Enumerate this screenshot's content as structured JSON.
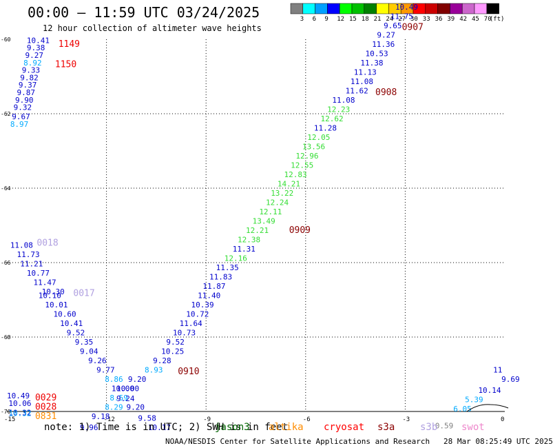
{
  "title": "00:00 – 11:59 UTC 03/24/2025",
  "subtitle": "12 hour collection of altimeter wave heights",
  "footer_note": "note: 1) Time is in UTC; 2) SWH is in feet",
  "footer_credit": "NOAA/NESDIS Center for Satellite Applications and Research   28 Mar 08:25:49 UTC 2025",
  "satellites": [
    {
      "name": "jason3",
      "color": "#006400"
    },
    {
      "name": "altika",
      "color": "#ff8c00"
    },
    {
      "name": "cryosat",
      "color": "#ff0000"
    },
    {
      "name": "s3a",
      "color": "#8b0000"
    },
    {
      "name": "s3b",
      "color": "#b0a0e0"
    },
    {
      "name": "swot",
      "color": "#ee88cc"
    }
  ],
  "chart_data": {
    "type": "scatter",
    "description_of_axes": "longitude (x) and latitude (y)",
    "xlim": [
      -15,
      0
    ],
    "ylim": [
      -70,
      -60
    ],
    "x_ticks": [
      -15,
      -12,
      -9,
      -6,
      -3,
      0
    ],
    "y_ticks": [
      -60,
      -62,
      -64,
      -66,
      -68,
      -70
    ],
    "grid": true,
    "colorbar": {
      "labels": [
        "3",
        "6",
        "9",
        "12",
        "15",
        "18",
        "21",
        "24",
        "27",
        "30",
        "33",
        "36",
        "39",
        "42",
        "45",
        "70"
      ],
      "unit": "(ft)",
      "colors": [
        "#808080",
        "#00ffff",
        "#00a0ff",
        "#0000ff",
        "#00ff00",
        "#00c000",
        "#008000",
        "#ffff00",
        "#ffcc00",
        "#ff9900",
        "#ff0000",
        "#cc0000",
        "#800000",
        "#990099",
        "#cc66cc",
        "#ff99ff",
        "#000000"
      ]
    },
    "points": [
      {
        "x": -14.4,
        "y": -60.1,
        "v": "10.41",
        "c": "#0000cc"
      },
      {
        "x": -14.4,
        "y": -60.3,
        "v": "9.38",
        "c": "#0000cc"
      },
      {
        "x": -14.45,
        "y": -60.5,
        "v": "9.27",
        "c": "#0000cc"
      },
      {
        "x": -14.5,
        "y": -60.7,
        "v": "8.92",
        "c": "#00aaff"
      },
      {
        "x": -14.55,
        "y": -60.9,
        "v": "9.33",
        "c": "#0000cc"
      },
      {
        "x": -14.6,
        "y": -61.1,
        "v": "9.82",
        "c": "#0000cc"
      },
      {
        "x": -14.65,
        "y": -61.3,
        "v": "9.37",
        "c": "#0000cc"
      },
      {
        "x": -14.7,
        "y": -61.5,
        "v": "9.87",
        "c": "#0000cc"
      },
      {
        "x": -14.75,
        "y": -61.7,
        "v": "9.90",
        "c": "#0000cc"
      },
      {
        "x": -14.8,
        "y": -61.9,
        "v": "9.32",
        "c": "#0000cc"
      },
      {
        "x": -14.85,
        "y": -62.15,
        "v": "9.67",
        "c": "#0000cc"
      },
      {
        "x": -14.9,
        "y": -62.35,
        "v": "8.97",
        "c": "#00aaff"
      },
      {
        "x": -14.9,
        "y": -65.6,
        "v": "11.08",
        "c": "#0000cc"
      },
      {
        "x": -14.7,
        "y": -65.85,
        "v": "11.73",
        "c": "#0000cc"
      },
      {
        "x": -14.6,
        "y": -66.1,
        "v": "11.21",
        "c": "#0000cc"
      },
      {
        "x": -14.4,
        "y": -66.35,
        "v": "10.77",
        "c": "#0000cc"
      },
      {
        "x": -14.2,
        "y": -66.6,
        "v": "11.47",
        "c": "#0000cc"
      },
      {
        "x": -13.95,
        "y": -66.85,
        "v": "10.30",
        "c": "#0000cc"
      },
      {
        "x": -14.05,
        "y": -66.95,
        "v": "10.10",
        "c": "#0000cc"
      },
      {
        "x": -13.85,
        "y": -67.2,
        "v": "10.01",
        "c": "#0000cc"
      },
      {
        "x": -13.6,
        "y": -67.45,
        "v": "10.60",
        "c": "#0000cc"
      },
      {
        "x": -13.4,
        "y": -67.7,
        "v": "10.41",
        "c": "#0000cc"
      },
      {
        "x": -13.2,
        "y": -67.95,
        "v": "9.52",
        "c": "#0000cc"
      },
      {
        "x": -12.95,
        "y": -68.2,
        "v": "9.35",
        "c": "#0000cc"
      },
      {
        "x": -12.8,
        "y": -68.45,
        "v": "9.04",
        "c": "#0000cc"
      },
      {
        "x": -12.55,
        "y": -68.7,
        "v": "9.26",
        "c": "#0000cc"
      },
      {
        "x": -12.3,
        "y": -68.95,
        "v": "9.77",
        "c": "#0000cc"
      },
      {
        "x": -12.05,
        "y": -69.2,
        "v": "8.86",
        "c": "#00aaff"
      },
      {
        "x": -11.85,
        "y": -69.45,
        "v": "10.00",
        "c": "#0000cc"
      },
      {
        "x": -11.7,
        "y": -69.45,
        "v": "10.00",
        "c": "#0000cc"
      },
      {
        "x": -11.9,
        "y": -69.7,
        "v": "8.59",
        "c": "#00aaff"
      },
      {
        "x": -11.7,
        "y": -69.72,
        "v": "9.24",
        "c": "#0000cc"
      },
      {
        "x": -12.05,
        "y": -69.95,
        "v": "8.29",
        "c": "#00aaff"
      },
      {
        "x": -12.45,
        "y": -70.2,
        "v": "9.18",
        "c": "#0000cc"
      },
      {
        "x": -12.8,
        "y": -70.5,
        "v": "9.96",
        "c": "#0000cc"
      },
      {
        "x": -11.4,
        "y": -69.95,
        "v": "9.20",
        "c": "#0000cc"
      },
      {
        "x": -11.35,
        "y": -69.2,
        "v": "9.20",
        "c": "#0000cc"
      },
      {
        "x": -11.05,
        "y": -70.25,
        "v": "9.58",
        "c": "#0000cc"
      },
      {
        "x": -10.75,
        "y": -70.5,
        "v": "10.17",
        "c": "#0000cc"
      },
      {
        "x": -10.85,
        "y": -68.95,
        "v": "8.93",
        "c": "#00aaff"
      },
      {
        "x": -10.6,
        "y": -68.7,
        "v": "9.28",
        "c": "#0000cc"
      },
      {
        "x": -10.35,
        "y": -68.45,
        "v": "10.25",
        "c": "#0000cc"
      },
      {
        "x": -10.2,
        "y": -68.2,
        "v": "9.52",
        "c": "#0000cc"
      },
      {
        "x": -10.0,
        "y": -67.95,
        "v": "10.73",
        "c": "#0000cc"
      },
      {
        "x": -9.8,
        "y": -67.7,
        "v": "11.64",
        "c": "#0000cc"
      },
      {
        "x": -9.6,
        "y": -67.45,
        "v": "10.72",
        "c": "#0000cc"
      },
      {
        "x": -9.45,
        "y": -67.2,
        "v": "10.39",
        "c": "#0000cc"
      },
      {
        "x": -9.25,
        "y": -66.95,
        "v": "11.40",
        "c": "#0000cc"
      },
      {
        "x": -9.1,
        "y": -66.7,
        "v": "11.87",
        "c": "#0000cc"
      },
      {
        "x": -8.9,
        "y": -66.45,
        "v": "11.83",
        "c": "#0000cc"
      },
      {
        "x": -8.7,
        "y": -66.2,
        "v": "11.35",
        "c": "#0000cc"
      },
      {
        "x": -8.45,
        "y": -65.95,
        "v": "12.16",
        "c": "#33dd33"
      },
      {
        "x": -8.2,
        "y": -65.7,
        "v": "11.31",
        "c": "#0000cc"
      },
      {
        "x": -8.05,
        "y": -65.45,
        "v": "12.38",
        "c": "#33dd33"
      },
      {
        "x": -7.8,
        "y": -65.2,
        "v": "12.21",
        "c": "#33dd33"
      },
      {
        "x": -7.6,
        "y": -64.95,
        "v": "13.49",
        "c": "#33dd33"
      },
      {
        "x": -7.4,
        "y": -64.7,
        "v": "12.11",
        "c": "#33dd33"
      },
      {
        "x": -7.2,
        "y": -64.45,
        "v": "12.24",
        "c": "#33dd33"
      },
      {
        "x": -7.05,
        "y": -64.2,
        "v": "13.22",
        "c": "#33dd33"
      },
      {
        "x": -6.85,
        "y": -63.95,
        "v": "14.21",
        "c": "#33dd33"
      },
      {
        "x": -6.65,
        "y": -63.7,
        "v": "12.83",
        "c": "#33dd33"
      },
      {
        "x": -6.45,
        "y": -63.45,
        "v": "12.55",
        "c": "#33dd33"
      },
      {
        "x": -6.3,
        "y": -63.2,
        "v": "12.96",
        "c": "#33dd33"
      },
      {
        "x": -6.1,
        "y": -62.95,
        "v": "13.56",
        "c": "#33dd33"
      },
      {
        "x": -5.95,
        "y": -62.7,
        "v": "12.05",
        "c": "#33dd33"
      },
      {
        "x": -5.75,
        "y": -62.45,
        "v": "11.28",
        "c": "#0000cc"
      },
      {
        "x": -5.55,
        "y": -62.2,
        "v": "12.62",
        "c": "#33dd33"
      },
      {
        "x": -5.35,
        "y": -61.95,
        "v": "12.23",
        "c": "#33dd33"
      },
      {
        "x": -5.2,
        "y": -61.7,
        "v": "11.08",
        "c": "#0000cc"
      },
      {
        "x": -4.8,
        "y": -61.45,
        "v": "11.62",
        "c": "#0000cc"
      },
      {
        "x": -4.65,
        "y": -61.2,
        "v": "11.08",
        "c": "#0000cc"
      },
      {
        "x": -4.55,
        "y": -60.95,
        "v": "11.13",
        "c": "#0000cc"
      },
      {
        "x": -4.35,
        "y": -60.7,
        "v": "11.38",
        "c": "#0000cc"
      },
      {
        "x": -4.2,
        "y": -60.45,
        "v": "10.53",
        "c": "#0000cc"
      },
      {
        "x": -4.0,
        "y": -60.2,
        "v": "11.36",
        "c": "#0000cc"
      },
      {
        "x": -3.85,
        "y": -59.95,
        "v": "9.27",
        "c": "#0000cc"
      },
      {
        "x": -3.65,
        "y": -59.7,
        "v": "9.65",
        "c": "#0000cc"
      },
      {
        "x": -3.45,
        "y": -59.45,
        "v": "11.75",
        "c": "#0000cc"
      },
      {
        "x": -3.3,
        "y": -59.2,
        "v": "10.49",
        "c": "#0000cc"
      },
      {
        "x": -15.0,
        "y": -69.65,
        "v": "10.49",
        "c": "#0000cc"
      },
      {
        "x": -14.95,
        "y": -69.85,
        "v": "10.06",
        "c": "#0000cc"
      },
      {
        "x": -14.95,
        "y": -70.1,
        "v": "10.32",
        "c": "#0000cc"
      },
      {
        "x": -14.95,
        "y": -70.12,
        "v": "10.32",
        "c": "#00aaff"
      },
      {
        "x": -0.35,
        "y": -68.95,
        "v": "11",
        "c": "#0000cc"
      },
      {
        "x": -0.1,
        "y": -69.2,
        "v": "9.69",
        "c": "#0000cc"
      },
      {
        "x": -0.8,
        "y": -69.5,
        "v": "10.14",
        "c": "#0000cc"
      },
      {
        "x": -1.2,
        "y": -69.75,
        "v": "5.39",
        "c": "#00aaff"
      },
      {
        "x": -1.55,
        "y": -70.0,
        "v": "6.05",
        "c": "#00aaff"
      },
      {
        "x": -2.1,
        "y": -70.45,
        "v": "0.59",
        "c": "#808080"
      }
    ],
    "time_labels": [
      {
        "x": -13.45,
        "y": -60.2,
        "t": "1149",
        "c": "#ee0000"
      },
      {
        "x": -13.55,
        "y": -60.75,
        "t": "1150",
        "c": "#ee0000"
      },
      {
        "x": -3.1,
        "y": -59.75,
        "t": "0907",
        "c": "#8b0000"
      },
      {
        "x": -3.9,
        "y": -61.5,
        "t": "0908",
        "c": "#8b0000"
      },
      {
        "x": -6.5,
        "y": -65.2,
        "t": "0909",
        "c": "#8b0000"
      },
      {
        "x": -9.85,
        "y": -69.0,
        "t": "0910",
        "c": "#8b0000"
      },
      {
        "x": -14.1,
        "y": -65.55,
        "t": "0018",
        "c": "#b0a0e0"
      },
      {
        "x": -13.0,
        "y": -66.9,
        "t": "0017",
        "c": "#b0a0e0"
      },
      {
        "x": -14.15,
        "y": -69.7,
        "t": "0029",
        "c": "#ee0000"
      },
      {
        "x": -14.15,
        "y": -69.95,
        "t": "0028",
        "c": "#ee0000"
      },
      {
        "x": -14.15,
        "y": -70.2,
        "t": "0831",
        "c": "#ff8c00"
      }
    ]
  }
}
